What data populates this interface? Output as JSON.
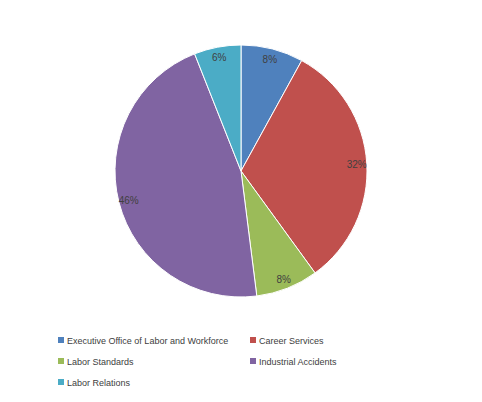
{
  "chart_data": {
    "type": "pie",
    "categories": [
      "Executive Office of Labor and Workforce",
      "Career Services",
      "Labor Standards",
      "Industrial Accidents",
      "Labor Relations"
    ],
    "values": [
      8,
      32,
      8,
      46,
      6
    ],
    "value_labels": [
      "8%",
      "32%",
      "8%",
      "46%",
      "6%"
    ],
    "colors": [
      "#4f81bd",
      "#c0504d",
      "#9bbb59",
      "#8064a2",
      "#4bacc6"
    ],
    "data_labels": true,
    "legend": "bottom"
  }
}
